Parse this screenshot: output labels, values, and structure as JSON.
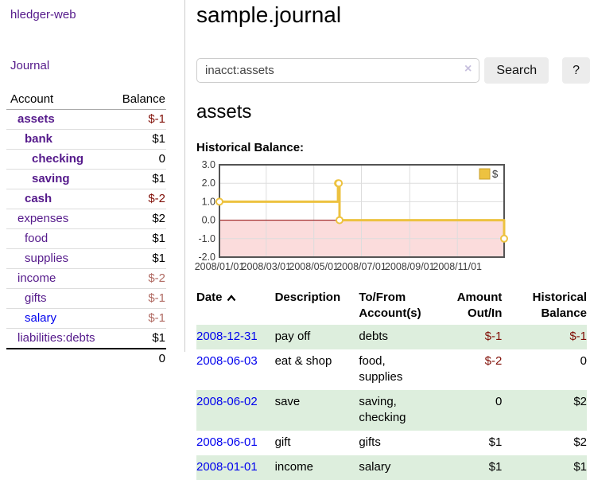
{
  "app": {
    "brand": "hledger-web"
  },
  "sidebar": {
    "journal_link": "Journal",
    "accounts": {
      "header_account": "Account",
      "header_balance": "Balance",
      "rows": [
        {
          "name": "assets",
          "balance": "$-1",
          "depth": 1,
          "matched": true
        },
        {
          "name": "bank",
          "balance": "$1",
          "depth": 2,
          "matched": true
        },
        {
          "name": "checking",
          "balance": "0",
          "depth": 3,
          "matched": true
        },
        {
          "name": "saving",
          "balance": "$1",
          "depth": 3,
          "matched": true
        },
        {
          "name": "cash",
          "balance": "$-2",
          "depth": 2,
          "matched": true
        },
        {
          "name": "expenses",
          "balance": "$2",
          "depth": 1,
          "matched": false
        },
        {
          "name": "food",
          "balance": "$1",
          "depth": 2,
          "matched": false
        },
        {
          "name": "supplies",
          "balance": "$1",
          "depth": 2,
          "matched": false
        },
        {
          "name": "income",
          "balance": "$-2",
          "depth": 1,
          "matched": false
        },
        {
          "name": "gifts",
          "balance": "$-1",
          "depth": 2,
          "matched": false
        },
        {
          "name": "salary",
          "balance": "$-1",
          "depth": 2,
          "matched": false,
          "link_state": "unvisited"
        },
        {
          "name": "liabilities:debts",
          "balance": "$1",
          "depth": 1,
          "matched": false
        }
      ],
      "total": "0"
    }
  },
  "main": {
    "title": "sample.journal",
    "search": {
      "value": "inacct:assets",
      "clear_icon": "×",
      "search_button": "Search",
      "help_button": "?"
    },
    "account_heading": "assets",
    "chart_heading": "Historical Balance:"
  },
  "chart_data": {
    "type": "line",
    "step": true,
    "title": "Historical Balance:",
    "series": [
      {
        "name": "$",
        "points": [
          [
            "2008-01-01",
            1
          ],
          [
            "2008-06-01",
            2
          ],
          [
            "2008-06-02",
            2
          ],
          [
            "2008-06-03",
            0
          ],
          [
            "2008-12-31",
            -1
          ]
        ]
      }
    ],
    "x_range": [
      "2008-01-01",
      "2008-12-31"
    ],
    "x_ticks": [
      "2008/01/01",
      "2008/03/01",
      "2008/05/01",
      "2008/07/01",
      "2008/09/01",
      "2008/11/01"
    ],
    "y_ticks": [
      3.0,
      2.0,
      1.0,
      0.0,
      -1.0,
      -2.0
    ],
    "ylim": [
      -2,
      3
    ],
    "grid": true,
    "legend": {
      "label": "$",
      "position": "top-right"
    },
    "colors": {
      "line": "#edc240",
      "marker_fill": "#ffffff",
      "negative_fill": "#fbdcdc",
      "zero_line": "#8b0000",
      "grid": "#dddddd",
      "border": "#545454",
      "tick_text": "#3c3c3c"
    }
  },
  "register": {
    "headers": {
      "date": "Date",
      "description": "Description",
      "accounts": "To/From Account(s)",
      "amount": "Amount Out/In",
      "balance": "Historical Balance"
    },
    "sort": {
      "column": "date",
      "direction": "ascending"
    },
    "rows": [
      {
        "date": "2008-12-31",
        "description": "pay off",
        "accounts": "debts",
        "amount": "$-1",
        "balance": "$-1"
      },
      {
        "date": "2008-06-03",
        "description": "eat & shop",
        "accounts": "food, supplies",
        "amount": "$-2",
        "balance": "0"
      },
      {
        "date": "2008-06-02",
        "description": "save",
        "accounts": "saving, checking",
        "amount": "0",
        "balance": "$2"
      },
      {
        "date": "2008-06-01",
        "description": "gift",
        "accounts": "gifts",
        "amount": "$1",
        "balance": "$2"
      },
      {
        "date": "2008-01-01",
        "description": "income",
        "accounts": "salary",
        "amount": "$1",
        "balance": "$1"
      }
    ]
  },
  "colors": {
    "link_purple": "#551a8b",
    "link_blue": "#0000ee",
    "negative_strong": "#800e06",
    "negative_dim": "#b06a62",
    "row_stripe_green": "#ddeedd",
    "button_gray": "#ececec"
  }
}
